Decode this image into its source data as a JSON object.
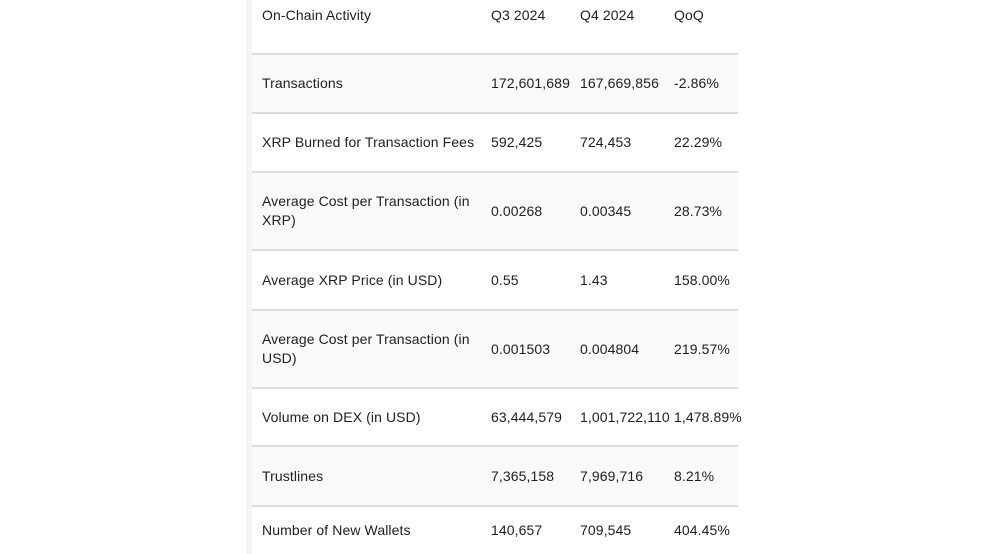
{
  "table": {
    "headers": [
      "On-Chain Activity",
      "Q3 2024",
      "Q4 2024",
      "QoQ"
    ],
    "rows": [
      [
        "Transactions",
        "172,601,689",
        "167,669,856",
        "-2.86%"
      ],
      [
        "XRP Burned for Transaction Fees",
        "592,425",
        "724,453",
        "22.29%"
      ],
      [
        "Average Cost per Transaction (in XRP)",
        "0.00268",
        "0.00345",
        "28.73%"
      ],
      [
        "Average XRP Price (in USD)",
        "0.55",
        "1.43",
        "158.00%"
      ],
      [
        "Average Cost per Transaction (in USD)",
        "0.001503",
        "0.004804",
        "219.57%"
      ],
      [
        "Volume on DEX (in USD)",
        "63,444,579",
        "1,001,722,110",
        "1,478.89%"
      ],
      [
        "Trustlines",
        "7,365,158",
        "7,969,716",
        "8.21%"
      ],
      [
        "Number of New Wallets",
        "140,657",
        "709,545",
        "404.45%"
      ]
    ]
  }
}
